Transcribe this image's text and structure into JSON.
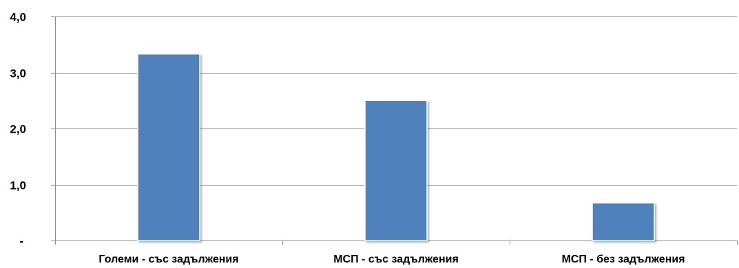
{
  "chart_data": {
    "type": "bar",
    "categories": [
      "Големи - със задължения",
      "МСП - със задължения",
      "МСП - без задължения"
    ],
    "values": [
      3.33,
      2.5,
      0.67
    ],
    "ylim": [
      0,
      4.0
    ],
    "yticks": [
      0,
      1.0,
      2.0,
      3.0,
      4.0
    ],
    "ytick_labels": [
      "-",
      "1,0",
      "2,0",
      "3,0",
      "4,0"
    ],
    "grid": true,
    "legend": "none",
    "title": "",
    "xlabel": "",
    "ylabel": "",
    "bar_color": "#4f81bd",
    "grid_color": "#8c8c8c",
    "axis_color": "#8c8c8c"
  }
}
